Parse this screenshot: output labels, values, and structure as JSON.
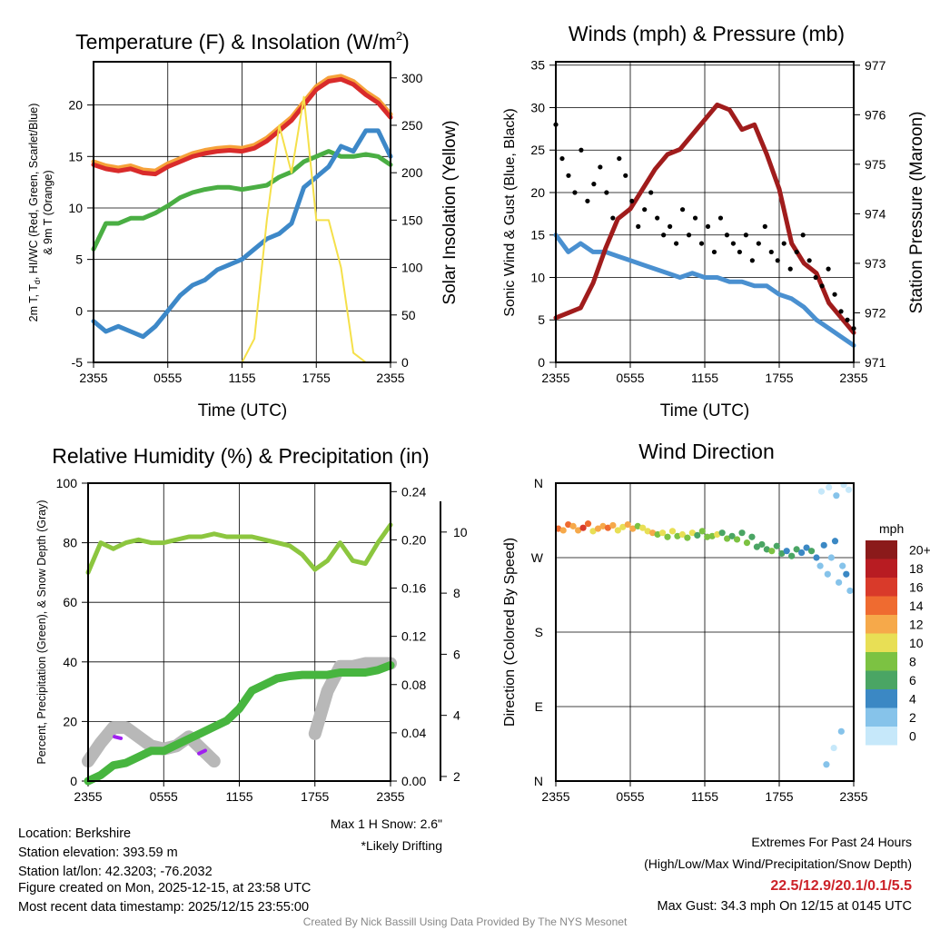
{
  "chart_data": [
    {
      "id": "temp",
      "type": "line",
      "title": "Temperature (F) & Insolation (W/m",
      "title_sup": "2",
      "title_end": ")",
      "xlabel": "Time (UTC)",
      "ylabel": "2m T, T",
      "ylabel_sub": "d",
      "ylabel_rest": ", HI/WC (Red, Green, Scarlet/Blue)",
      "ylabel2": "& 9m T (Orange)",
      "y2label": "Solar Insolation (Yellow)",
      "xticks": [
        "2355",
        "0555",
        "1155",
        "1755",
        "2355"
      ],
      "ylim": [
        -5,
        24.2
      ],
      "yticks": [
        "-5",
        "0",
        "5",
        "10",
        "15",
        "20"
      ],
      "y2lim": [
        0,
        317
      ],
      "y2ticks": [
        "0",
        "50",
        "100",
        "150",
        "200",
        "250",
        "300"
      ],
      "series": [
        {
          "name": "9m T",
          "color": "#f6a23a",
          "axis": "left",
          "values": [
            14.5,
            14.1,
            13.9,
            14.1,
            13.7,
            13.6,
            14.3,
            14.8,
            15.3,
            15.6,
            15.8,
            15.9,
            15.8,
            16.1,
            16.8,
            17.8,
            18.8,
            20.3,
            21.8,
            22.6,
            22.8,
            22.3,
            21.3,
            20.5,
            19.1
          ]
        },
        {
          "name": "2m T",
          "color": "#d92b2b",
          "axis": "left",
          "values": [
            14.2,
            13.8,
            13.6,
            13.8,
            13.4,
            13.3,
            14,
            14.5,
            15,
            15.3,
            15.5,
            15.6,
            15.5,
            15.8,
            16.5,
            17.5,
            18.5,
            20,
            21.5,
            22.3,
            22.5,
            22,
            21,
            20.2,
            18.8
          ]
        },
        {
          "name": "Td",
          "color": "#4aae43",
          "axis": "left",
          "values": [
            6,
            8.5,
            8.5,
            9,
            9,
            9.5,
            10.2,
            11,
            11.5,
            11.8,
            12,
            12,
            11.8,
            12,
            12.2,
            13,
            13.5,
            14.5,
            15,
            15.5,
            15,
            15,
            15.2,
            15,
            14.2
          ]
        },
        {
          "name": "HI/WC",
          "color": "#3d88c8",
          "axis": "left",
          "values": [
            -1,
            -2,
            -1.5,
            -2,
            -2.5,
            -1.5,
            0,
            1.5,
            2.5,
            3,
            4,
            4.5,
            5,
            6,
            7,
            7.5,
            8.5,
            12,
            13,
            14,
            16,
            15.5,
            17.5,
            17.5,
            15
          ]
        },
        {
          "name": "Solar",
          "color": "#f5e04a",
          "axis": "right",
          "values": [
            0,
            0,
            0,
            0,
            0,
            0,
            0,
            0,
            0,
            0,
            0,
            0,
            0,
            25,
            150,
            250,
            200,
            280,
            150,
            150,
            100,
            10,
            0,
            0,
            0
          ]
        }
      ]
    },
    {
      "id": "wind",
      "type": "line",
      "title": "Winds (mph) & Pressure (mb)",
      "xlabel": "Time (UTC)",
      "ylabel": "Sonic Wind & Gust (Blue, Black)",
      "y2label": "Station Pressure (Maroon)",
      "xticks": [
        "2355",
        "0555",
        "1155",
        "1755",
        "2355"
      ],
      "ylim": [
        0,
        35.4
      ],
      "yticks": [
        "0",
        "5",
        "10",
        "15",
        "20",
        "25",
        "30",
        "35"
      ],
      "y2lim": [
        971,
        977.07
      ],
      "y2ticks": [
        "971",
        "972",
        "973",
        "974",
        "975",
        "976",
        "977"
      ],
      "series": [
        {
          "name": "Wind",
          "color": "#4a90d0",
          "axis": "left",
          "values": [
            15,
            13,
            14,
            13,
            13,
            12.5,
            12,
            11.5,
            11,
            10.5,
            10,
            10.5,
            10,
            10,
            9.5,
            9.5,
            9,
            9,
            8,
            7.5,
            6.5,
            5,
            4,
            3,
            2
          ]
        },
        {
          "name": "Pressure",
          "color": "#a01c1c",
          "axis": "right",
          "values": [
            971.9,
            972,
            972.1,
            972.6,
            973.3,
            973.9,
            974.1,
            974.5,
            974.9,
            975.2,
            975.3,
            975.6,
            975.9,
            976.2,
            976.1,
            975.7,
            975.8,
            975.2,
            974.5,
            973.4,
            973,
            972.8,
            972.2,
            971.9,
            971.6
          ]
        },
        {
          "name": "Gust",
          "color": "#000000",
          "axis": "left",
          "points": true,
          "values": [
            28,
            24,
            22,
            20,
            25,
            19,
            21,
            23,
            20,
            17,
            24,
            22,
            19,
            16,
            18,
            20,
            17,
            15,
            16,
            14,
            18,
            15,
            17,
            14,
            16,
            13,
            17,
            15,
            14,
            13,
            15,
            12,
            14,
            16,
            13,
            12,
            14,
            11,
            13,
            15,
            12,
            10,
            9,
            11,
            8,
            6,
            5,
            4
          ]
        }
      ]
    },
    {
      "id": "rh",
      "type": "line",
      "title": "Relative Humidity (%) & Precipitation (in)",
      "ylabel": "Percent, Precipitation (Green), & Snow Depth (Gray)",
      "xticks": [
        "2355",
        "0555",
        "1155",
        "1755",
        "2355"
      ],
      "ylim": [
        0,
        100
      ],
      "yticks": [
        "0",
        "20",
        "40",
        "60",
        "80",
        "100"
      ],
      "y2lim": [
        0,
        0.247
      ],
      "y2ticks": [
        "0.00",
        "0.04",
        "0.08",
        "0.12",
        "0.16",
        "0.20",
        "0.24"
      ],
      "y3lim": [
        1.85,
        11.6
      ],
      "y3ticks": [
        "2",
        "4",
        "6",
        "8",
        "10"
      ],
      "series": [
        {
          "name": "Snow Depth",
          "color": "#b8b8b8",
          "axis": "y3",
          "values": [
            2.5,
            3.1,
            3.6,
            3.6,
            3.3,
            3.0,
            2.9,
            3.0,
            3.3,
            2.9,
            2.5,
            null,
            null,
            null,
            null,
            null,
            null,
            null,
            3.4,
            4.8,
            5.6,
            5.6,
            5.7,
            5.7,
            5.7
          ]
        },
        {
          "name": "Precipitation",
          "color": "#47b53f",
          "axis": "right",
          "values": [
            0,
            0.005,
            0.013,
            0.015,
            0.02,
            0.025,
            0.025,
            0.03,
            0.035,
            0.04,
            0.045,
            0.05,
            0.06,
            0.075,
            0.08,
            0.085,
            0.087,
            0.088,
            0.088,
            0.088,
            0.09,
            0.09,
            0.09,
            0.092,
            0.096
          ]
        },
        {
          "name": "RH",
          "color": "#8cc63f",
          "axis": "left",
          "values": [
            70,
            80,
            78,
            80,
            81,
            80,
            80,
            81,
            82,
            82,
            83,
            82,
            82,
            82,
            81,
            80,
            79,
            76,
            71,
            74,
            80,
            74,
            73,
            80,
            86
          ]
        }
      ],
      "drifting": [
        {
          "x": [
            2.1,
            2.6
          ],
          "y": [
            3.3,
            3.25
          ]
        },
        {
          "x": [
            8.8,
            9.3
          ],
          "y": [
            2.75,
            2.85
          ]
        }
      ],
      "snow_note": "Max 1 H Snow: 2.6\"",
      "drift_note": "*Likely Drifting",
      "drift_color": "#a020f0"
    },
    {
      "id": "dir",
      "type": "scatter",
      "title": "Wind Direction",
      "ylabel": "Direction (Colored By Speed)",
      "xticks": [
        "2355",
        "0555",
        "1155",
        "1755",
        "2355"
      ],
      "yticks": [
        "N",
        "E",
        "S",
        "W",
        "N"
      ],
      "ylim": [
        0,
        360
      ],
      "hours": [
        0.2,
        0.6,
        1,
        1.4,
        1.8,
        2.2,
        2.6,
        3,
        3.4,
        3.8,
        4.2,
        4.6,
        5,
        5.4,
        5.8,
        6.2,
        6.6,
        7,
        7.4,
        7.8,
        8.2,
        8.6,
        9,
        9.4,
        9.8,
        10.2,
        10.6,
        11,
        11.4,
        11.8,
        12.2,
        12.6,
        13,
        13.4,
        13.8,
        14.2,
        14.6,
        15,
        15.4,
        15.8,
        16.2,
        16.6,
        17,
        17.4,
        17.8,
        18.2,
        18.6,
        19,
        19.4,
        19.8,
        20.2,
        20.6,
        21,
        21.3,
        21.6,
        21.9,
        22.2,
        22.5,
        22.8,
        23.1,
        23.4,
        23.7,
        21.4,
        22,
        22.6,
        23.2,
        23.6,
        21.8,
        22.4,
        23
      ],
      "dirs": [
        305,
        303,
        310,
        308,
        303,
        306,
        311,
        302,
        305,
        308,
        306,
        309,
        303,
        307,
        310,
        305,
        308,
        306,
        302,
        300,
        298,
        300,
        295,
        302,
        296,
        298,
        294,
        300,
        297,
        302,
        295,
        296,
        298,
        300,
        293,
        296,
        292,
        300,
        288,
        295,
        283,
        286,
        280,
        278,
        284,
        275,
        278,
        272,
        280,
        276,
        282,
        278,
        270,
        260,
        285,
        250,
        270,
        290,
        240,
        260,
        250,
        230,
        350,
        355,
        345,
        358,
        352,
        20,
        40,
        60,
        80,
        120
      ],
      "speeds": [
        15,
        13,
        14,
        12,
        13,
        16,
        14,
        11,
        12,
        13,
        14,
        12,
        10,
        11,
        13,
        12,
        9,
        11,
        10,
        12,
        9,
        10,
        9,
        10,
        8,
        11,
        9,
        10,
        7,
        9,
        9,
        8,
        10,
        7,
        8,
        7,
        8,
        6,
        9,
        7,
        6,
        7,
        6,
        8,
        6,
        7,
        5,
        6,
        7,
        4,
        5,
        6,
        4,
        3,
        5,
        2,
        3,
        4,
        2,
        3,
        4,
        3,
        1,
        1,
        2,
        1,
        0,
        3,
        1,
        2,
        1,
        3
      ],
      "legend_title": "mph",
      "legend_labels": [
        "0",
        "2",
        "4",
        "6",
        "8",
        "10",
        "12",
        "14",
        "16",
        "18",
        "20+"
      ],
      "colors": [
        "#c6e8fa",
        "#86c3ea",
        "#3b88c4",
        "#4aa564",
        "#7cc242",
        "#e8df55",
        "#f6a94a",
        "#ef6b30",
        "#d93a2a",
        "#b81c22",
        "#8b1a1a"
      ]
    }
  ],
  "info": {
    "location": "Location: Berkshire",
    "elevation": "Station elevation: 393.59 m",
    "latlon": "Station lat/lon: 42.3203; -76.2032",
    "created": "Figure created on Mon, 2025-12-15, at 23:58 UTC",
    "recent": "Most recent data timestamp: 2025/12/15 23:55:00"
  },
  "extremes": {
    "title": "Extremes For Past 24 Hours",
    "subtitle": "(High/Low/Max Wind/Precipitation/Snow Depth)",
    "values": "22.5/12.9/20.1/0.1/5.5",
    "value_color": "#cc2229",
    "gust": "Max Gust: 34.3 mph On 12/15 at 0145 UTC"
  },
  "credit": "Created By Nick Bassill Using Data Provided By The NYS Mesonet"
}
